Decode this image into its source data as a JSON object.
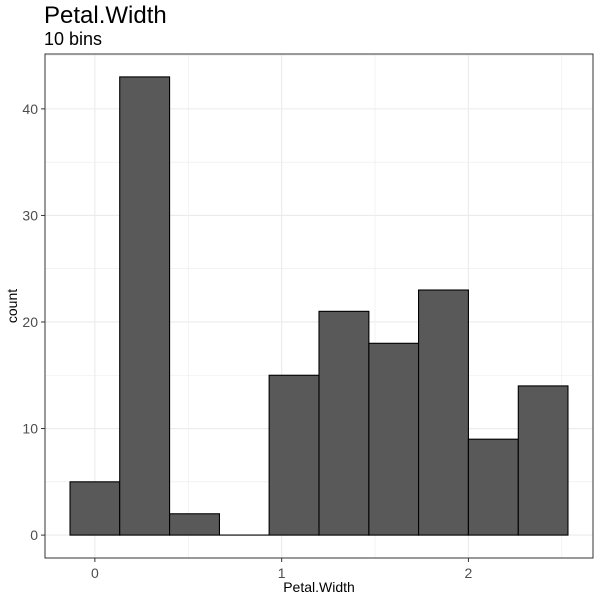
{
  "chart_data": {
    "type": "bar",
    "title": "Petal.Width",
    "subtitle": "10 bins",
    "xlabel": "Petal.Width",
    "ylabel": "count",
    "bins": [
      {
        "x0": -0.133,
        "x1": 0.133,
        "count": 5
      },
      {
        "x0": 0.133,
        "x1": 0.4,
        "count": 43
      },
      {
        "x0": 0.4,
        "x1": 0.667,
        "count": 2
      },
      {
        "x0": 0.667,
        "x1": 0.933,
        "count": 0
      },
      {
        "x0": 0.933,
        "x1": 1.2,
        "count": 15
      },
      {
        "x0": 1.2,
        "x1": 1.467,
        "count": 21
      },
      {
        "x0": 1.467,
        "x1": 1.733,
        "count": 18
      },
      {
        "x0": 1.733,
        "x1": 2.0,
        "count": 23
      },
      {
        "x0": 2.0,
        "x1": 2.267,
        "count": 9
      },
      {
        "x0": 2.267,
        "x1": 2.533,
        "count": 14
      }
    ],
    "xlim": [
      -0.267,
      2.667
    ],
    "ylim": [
      -2.15,
      45.15
    ],
    "x_ticks": [
      0,
      1,
      2
    ],
    "x_tick_labels": [
      "0",
      "1",
      "2"
    ],
    "y_ticks": [
      0,
      10,
      20,
      30,
      40
    ],
    "y_tick_labels": [
      "0",
      "10",
      "20",
      "30",
      "40"
    ],
    "grid": true,
    "colors": {
      "bar_fill": "#595959",
      "bar_stroke": "#000000",
      "grid": "#ebebeb",
      "panel_border": "#333333"
    }
  }
}
